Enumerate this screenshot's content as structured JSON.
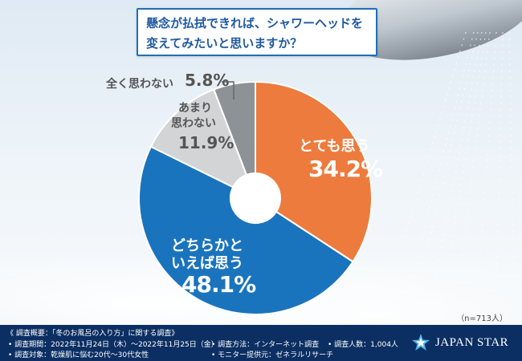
{
  "title_lines": [
    "懸念が払拭できれば、シャワーヘッドを",
    "変えてみたいと思いますか？"
  ],
  "colors": {
    "s1": "#ed7b3d",
    "s2": "#1a74bd",
    "s3": "#d2d4d6",
    "s4": "#8d9296",
    "footer_bg": "#0c2f63",
    "title_border": "#1f6fb6"
  },
  "chart_data": {
    "type": "pie",
    "series": [
      {
        "name": "とても思う",
        "value": 34.2,
        "display": "34.2%"
      },
      {
        "name": "どちらかといえば思う",
        "name_lines": [
          "どちらかと",
          "いえば思う"
        ],
        "value": 48.1,
        "display": "48.1%"
      },
      {
        "name": "あまり思わない",
        "name_lines": [
          "あまり",
          "思わない"
        ],
        "value": 11.9,
        "display": "11.9%"
      },
      {
        "name": "全く思わない",
        "value": 5.8,
        "display": "5.8%"
      }
    ],
    "n_label": "（n=713人）"
  },
  "footer": {
    "overview": "《 調査概要：「冬のお風呂の入り方」に関する調査》",
    "period": "• 調査期間：2022年11月24日（木）～2022年11月25日（金）",
    "target": "• 調査対象：乾燥肌に悩む20代～30代女性",
    "method": "• 調査方法：インターネット調査",
    "provider": "• モニター提供元：ゼネラルリサーチ",
    "people": "• 調査人数：1,004人"
  },
  "logo": {
    "text": "JAPAN STAR",
    "icon": "star-logo-icon"
  }
}
